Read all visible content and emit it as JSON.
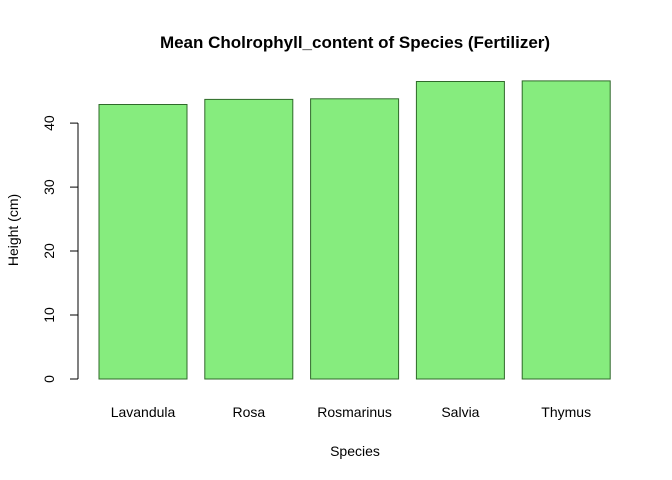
{
  "chart_data": {
    "type": "bar",
    "title": "Mean Cholrophyll_content of Species (Fertilizer)",
    "xlabel": "Species",
    "ylabel": "Height (cm)",
    "categories": [
      "Lavandula",
      "Rosa",
      "Rosmarinus",
      "Salvia",
      "Thymus"
    ],
    "values": [
      42.9,
      43.7,
      43.8,
      46.5,
      46.6
    ],
    "ylim": [
      0,
      48.3
    ],
    "yticks": [
      0,
      10,
      20,
      30,
      40
    ],
    "ytick_labels": [
      "0",
      "10",
      "20",
      "30",
      "40"
    ],
    "bar_fill": "#86ec7e",
    "bar_stroke": "#2f6a2a",
    "grid": false,
    "legend": "none"
  }
}
